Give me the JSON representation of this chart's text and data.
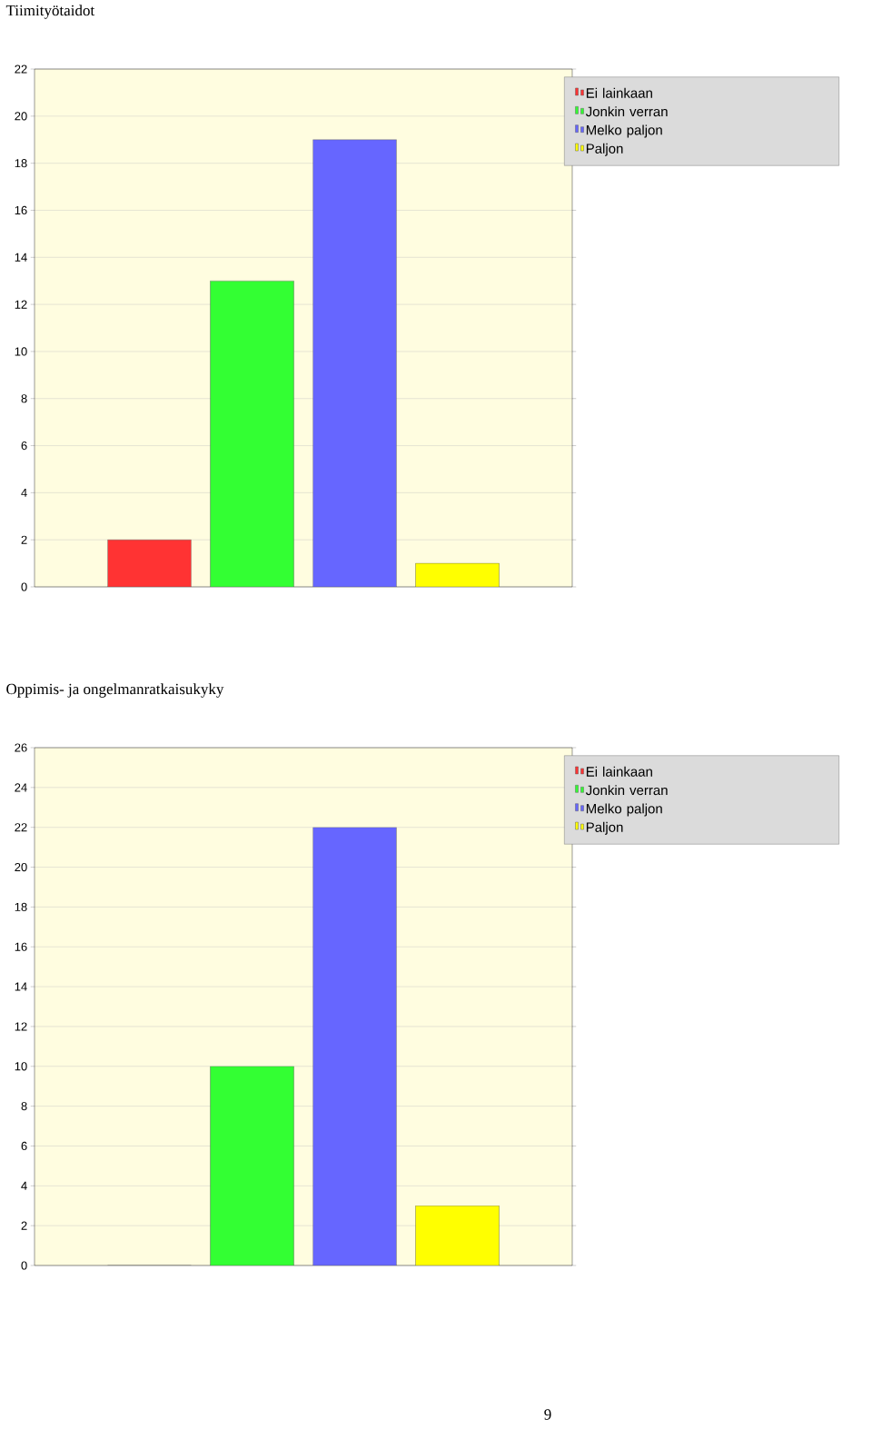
{
  "chart_data": [
    {
      "type": "bar",
      "title": "Tiimityötaidot",
      "categories": [
        null
      ],
      "series": [
        {
          "name": "Ei lainkaan",
          "color": "#ff3333",
          "values": [
            2
          ]
        },
        {
          "name": "Jonkin verran",
          "color": "#33ff33",
          "values": [
            13
          ]
        },
        {
          "name": "Melko paljon",
          "color": "#6666ff",
          "values": [
            19
          ]
        },
        {
          "name": "Paljon",
          "color": "#ffff00",
          "values": [
            1
          ]
        }
      ],
      "ylim": [
        0,
        22
      ],
      "yticks": [
        0,
        2,
        4,
        6,
        8,
        10,
        12,
        14,
        16,
        18,
        20,
        22
      ],
      "grid": "y",
      "legend": "right"
    },
    {
      "type": "bar",
      "title": "Oppimis- ja ongelmanratkaisukyky",
      "categories": [
        null
      ],
      "series": [
        {
          "name": "Ei lainkaan",
          "color": "#ff3333",
          "values": [
            0
          ]
        },
        {
          "name": "Jonkin verran",
          "color": "#33ff33",
          "values": [
            10
          ]
        },
        {
          "name": "Melko paljon",
          "color": "#6666ff",
          "values": [
            22
          ]
        },
        {
          "name": "Paljon",
          "color": "#ffff00",
          "values": [
            3
          ]
        }
      ],
      "ylim": [
        0,
        26
      ],
      "yticks": [
        0,
        2,
        4,
        6,
        8,
        10,
        12,
        14,
        16,
        18,
        20,
        22,
        24,
        26
      ],
      "grid": "y",
      "legend": "right",
      "annotations": [
        "9"
      ]
    }
  ]
}
